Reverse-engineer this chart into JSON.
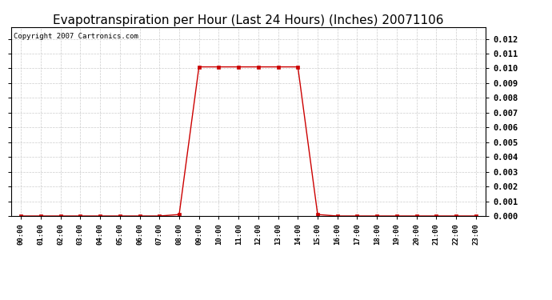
{
  "title": "Evapotranspiration per Hour (Last 24 Hours) (Inches) 20071106",
  "copyright_text": "Copyright 2007 Cartronics.com",
  "hours": [
    0,
    1,
    2,
    3,
    4,
    5,
    6,
    7,
    8,
    9,
    10,
    11,
    12,
    13,
    14,
    15,
    16,
    17,
    18,
    19,
    20,
    21,
    22,
    23
  ],
  "values": [
    0.0,
    0.0,
    0.0,
    0.0,
    0.0,
    0.0,
    0.0,
    0.0,
    0.0001,
    0.0101,
    0.0101,
    0.0101,
    0.0101,
    0.0101,
    0.0101,
    0.0001,
    0.0,
    0.0,
    0.0,
    0.0,
    0.0,
    0.0,
    0.0,
    0.0
  ],
  "ylim": [
    0,
    0.0128
  ],
  "yticks": [
    0.0,
    0.001,
    0.002,
    0.003,
    0.004,
    0.005,
    0.006,
    0.007,
    0.008,
    0.009,
    0.01,
    0.011,
    0.012
  ],
  "line_color": "#cc0000",
  "marker": "s",
  "marker_size": 2.5,
  "grid_color": "#cccccc",
  "bg_color": "#ffffff",
  "title_fontsize": 11,
  "copyright_fontsize": 6.5,
  "tick_label_fontsize": 6.5,
  "ytick_label_fontsize": 7.5
}
